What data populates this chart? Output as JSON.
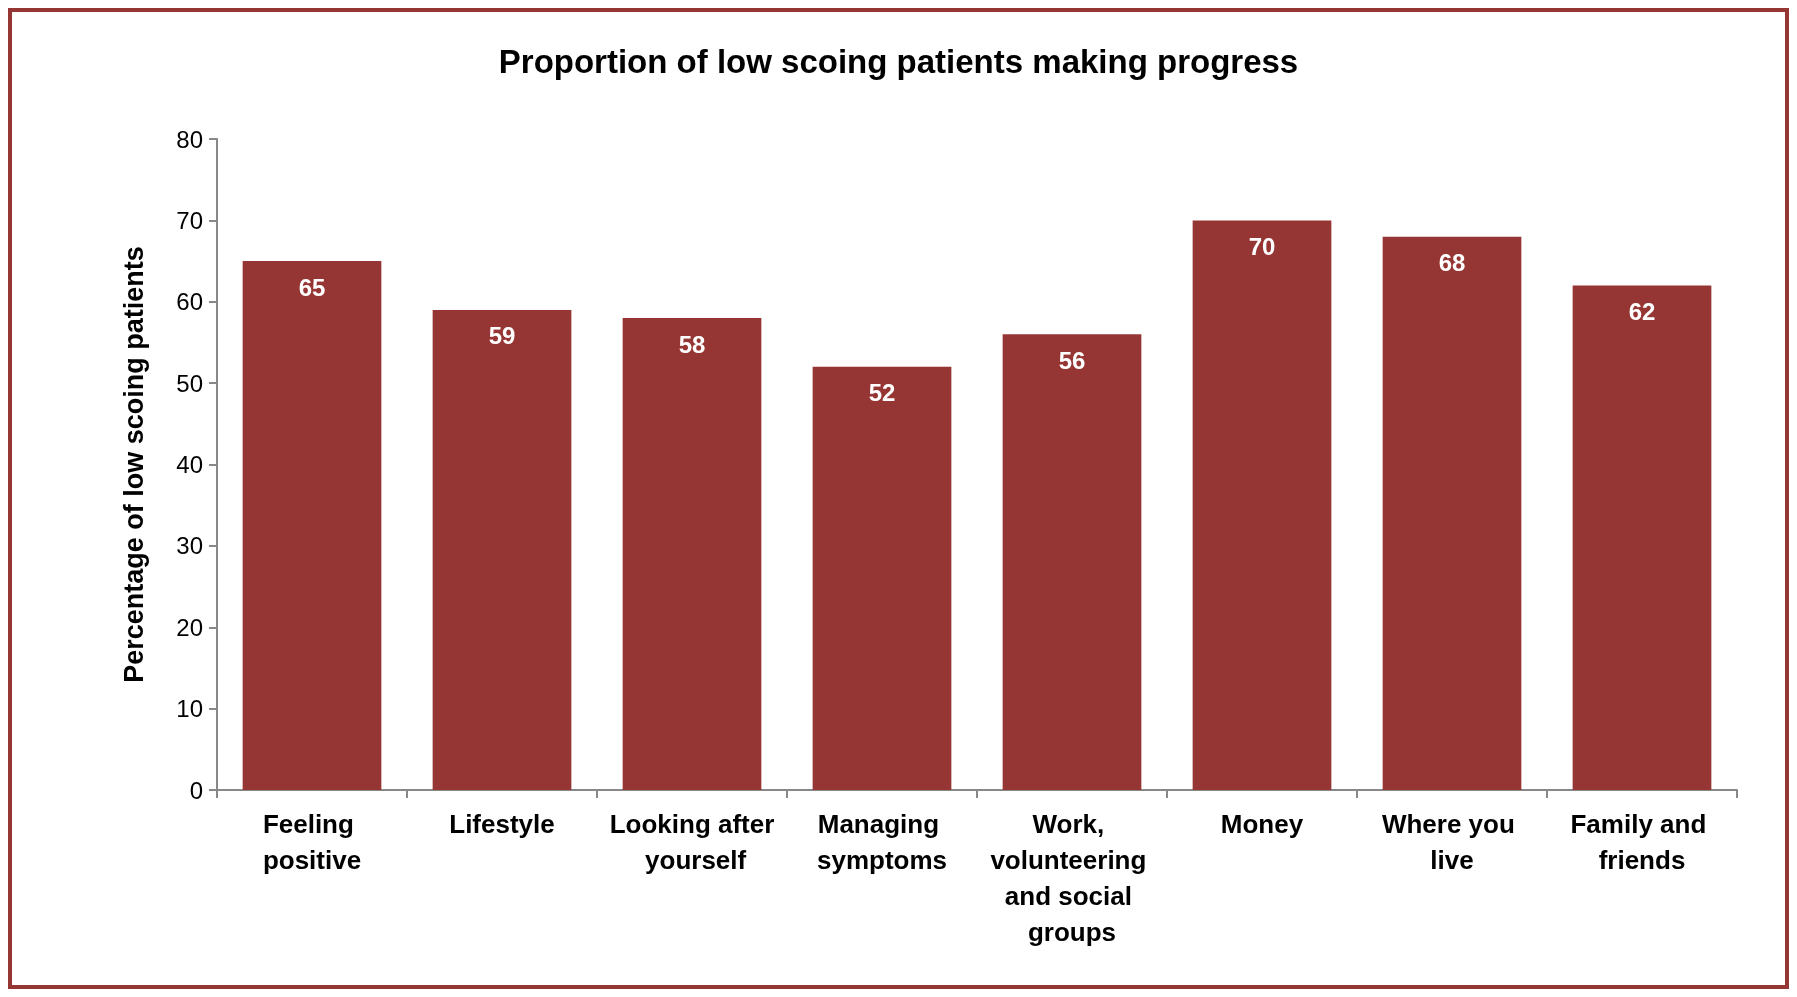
{
  "chart_data": {
    "type": "bar",
    "title": "Proportion of low scoing patients making progress",
    "ylabel": "Percentage of low scoing patients",
    "categories": [
      "Feeling positive",
      "Lifestyle",
      "Looking after yourself",
      "Managing symptoms",
      "Work, volunteering and social groups",
      "Money",
      "Where you live",
      "Family and friends"
    ],
    "values": [
      65,
      59,
      58,
      52,
      56,
      70,
      68,
      62
    ],
    "color": "#963634",
    "ylim": [
      0,
      80
    ],
    "yticks": [
      0,
      10,
      20,
      30,
      40,
      50,
      60,
      70,
      80
    ],
    "grid": false,
    "data_labels": true
  }
}
